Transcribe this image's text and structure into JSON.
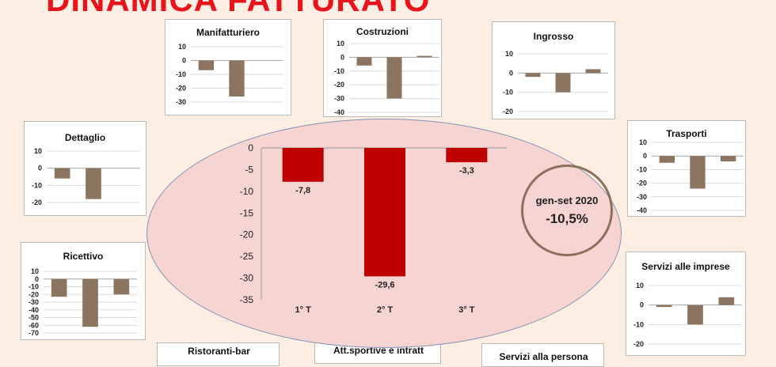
{
  "page_title": "DINAMICA FATTURATO",
  "badge": {
    "period": "gen-set 2020",
    "value": "-10,5%"
  },
  "colors": {
    "title": "#e8141b",
    "central_bar": "#c00000",
    "sector_bar": "#8b7560",
    "oval_fill": "#f6d4d2",
    "oval_border": "#8292b6"
  },
  "bottom_titles": [
    "Ristoranti-bar",
    "Att.sportive e intratt",
    "Servizi alla persona"
  ],
  "chart_data": [
    {
      "id": "totale",
      "type": "bar",
      "categories": [
        "1° T",
        "2° T",
        "3° T"
      ],
      "values": [
        -7.8,
        -29.6,
        -3.3
      ],
      "value_labels": [
        "-7,8",
        "-29,6",
        "-3,3"
      ],
      "yticks": [
        0,
        -5,
        -10,
        -15,
        -20,
        -25,
        -30,
        -35
      ],
      "ylim": [
        -35,
        0
      ],
      "grid": false
    },
    {
      "id": "manifatturiero",
      "type": "bar",
      "title": "Manifatturiero",
      "values": [
        -7,
        -26,
        0
      ],
      "yticks": [
        10,
        0,
        -10,
        -20,
        -30
      ],
      "ylim": [
        -30,
        10
      ]
    },
    {
      "id": "costruzioni",
      "type": "bar",
      "title": "Costruzioni",
      "values": [
        -6,
        -30,
        1
      ],
      "yticks": [
        10,
        0,
        -10,
        -20,
        -30,
        -40
      ],
      "ylim": [
        -40,
        10
      ]
    },
    {
      "id": "ingrosso",
      "type": "bar",
      "title": "Ingrosso",
      "values": [
        -2,
        -10,
        2
      ],
      "yticks": [
        10,
        0,
        -10,
        -20
      ],
      "ylim": [
        -20,
        10
      ]
    },
    {
      "id": "dettaglio",
      "type": "bar",
      "title": "Dettaglio",
      "values": [
        -6,
        -18,
        0
      ],
      "yticks": [
        10,
        0,
        -10,
        -20
      ],
      "ylim": [
        -20,
        10
      ]
    },
    {
      "id": "trasporti",
      "type": "bar",
      "title": "Trasporti",
      "values": [
        -5,
        -24,
        -4
      ],
      "yticks": [
        10,
        0,
        -10,
        -20,
        -30,
        -40
      ],
      "ylim": [
        -40,
        10
      ]
    },
    {
      "id": "ricettivo",
      "type": "bar",
      "title": "Ricettivo",
      "values": [
        -23,
        -62,
        -20
      ],
      "yticks": [
        10,
        0,
        -10,
        -20,
        -30,
        -40,
        -50,
        -60,
        -70
      ],
      "ylim": [
        -70,
        10
      ]
    },
    {
      "id": "servizi_imprese",
      "type": "bar",
      "title": "Servizi alle imprese",
      "values": [
        -1,
        -10,
        4
      ],
      "yticks": [
        10,
        0,
        -10,
        -20
      ],
      "ylim": [
        -20,
        10
      ]
    }
  ]
}
